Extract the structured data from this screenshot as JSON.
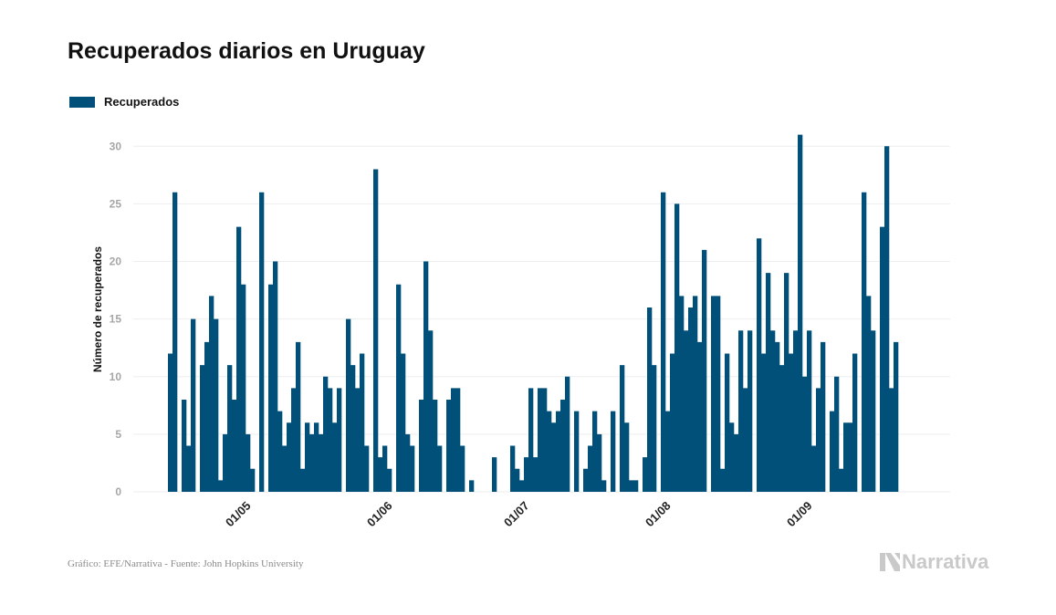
{
  "header": {
    "title": "Recuperados diarios en Uruguay"
  },
  "footer": {
    "source": "Gráfico: EFE/Narrativa - Fuente: John Hopkins University",
    "brand": "Narrativa"
  },
  "colors": {
    "bar": "#00507a",
    "grid": "#eeeeee",
    "brand": "#c9c9c9"
  },
  "chart_data": {
    "type": "bar",
    "title": "Recuperados diarios en Uruguay",
    "ylabel": "Número de recuperados",
    "xlabel": "",
    "legend": {
      "placement": "top-left",
      "entries": [
        "Recuperados"
      ]
    },
    "series": [
      {
        "name": "Recuperados",
        "x_start": "2020-04-14",
        "values": [
          12,
          26,
          0,
          8,
          4,
          15,
          0,
          11,
          13,
          17,
          15,
          1,
          5,
          11,
          8,
          23,
          18,
          5,
          2,
          0,
          26,
          0,
          18,
          20,
          7,
          4,
          6,
          9,
          13,
          2,
          6,
          5,
          6,
          5,
          10,
          9,
          6,
          9,
          0,
          15,
          11,
          9,
          12,
          4,
          0,
          28,
          3,
          4,
          2,
          0,
          18,
          12,
          5,
          4,
          0,
          8,
          20,
          14,
          8,
          4,
          0,
          8,
          9,
          9,
          4,
          0,
          1,
          0,
          0,
          0,
          0,
          3,
          0,
          0,
          0,
          4,
          2,
          1,
          3,
          9,
          3,
          9,
          9,
          7,
          6,
          7,
          8,
          10,
          0,
          7,
          0,
          2,
          4,
          7,
          5,
          1,
          0,
          7,
          0,
          11,
          6,
          1,
          1,
          0,
          3,
          16,
          11,
          0,
          26,
          7,
          12,
          25,
          17,
          14,
          16,
          17,
          13,
          21,
          0,
          17,
          17,
          2,
          12,
          6,
          5,
          14,
          9,
          14,
          0,
          22,
          12,
          19,
          14,
          13,
          11,
          19,
          12,
          14,
          31,
          10,
          14,
          4,
          9,
          13,
          0,
          7,
          10,
          2,
          6,
          6,
          12,
          0,
          26,
          17,
          14,
          0,
          23,
          30,
          9,
          13
        ]
      }
    ],
    "x_ticks": [
      {
        "date": "2020-05-01",
        "label": "01/05"
      },
      {
        "date": "2020-06-01",
        "label": "01/06"
      },
      {
        "date": "2020-07-01",
        "label": "01/07"
      },
      {
        "date": "2020-08-01",
        "label": "01/08"
      },
      {
        "date": "2020-09-01",
        "label": "01/09"
      }
    ],
    "y_ticks": [
      0,
      5,
      10,
      15,
      20,
      25,
      30
    ],
    "ylim": [
      0,
      32
    ],
    "grid": true
  }
}
